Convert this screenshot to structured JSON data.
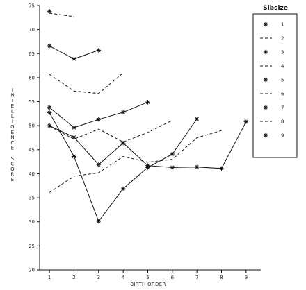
{
  "chart_data": {
    "type": "line",
    "title": "",
    "xlabel": "BIRTH ORDER",
    "ylabel": "INTELLIGENCE SCORE",
    "xlim": [
      0.6,
      9.6
    ],
    "ylim": [
      20,
      75
    ],
    "xticks": [
      1,
      2,
      3,
      4,
      5,
      6,
      7,
      8,
      9
    ],
    "yticks": [
      20,
      25,
      30,
      35,
      40,
      45,
      50,
      55,
      60,
      65,
      70,
      75
    ],
    "grid": false,
    "legend_title": "Sibsize",
    "legend_position": "top-right",
    "series": [
      {
        "name": "1",
        "style": "solid",
        "marker": "star",
        "x": [
          1
        ],
        "y": [
          73.8
        ]
      },
      {
        "name": "2",
        "style": "dashed",
        "marker": "none",
        "x": [
          1,
          2
        ],
        "y": [
          73.4,
          72.7
        ]
      },
      {
        "name": "3",
        "style": "solid",
        "marker": "star",
        "x": [
          1,
          2,
          3
        ],
        "y": [
          66.6,
          63.9,
          65.7
        ]
      },
      {
        "name": "4",
        "style": "dashed",
        "marker": "none",
        "x": [
          1,
          2,
          3,
          4
        ],
        "y": [
          60.7,
          57.2,
          56.7,
          61.0
        ]
      },
      {
        "name": "5",
        "style": "solid",
        "marker": "star",
        "x": [
          1,
          2,
          3,
          4,
          5
        ],
        "y": [
          53.8,
          49.6,
          51.3,
          52.8,
          54.9
        ]
      },
      {
        "name": "6",
        "style": "dashed",
        "marker": "none",
        "x": [
          1,
          2,
          3,
          4,
          5,
          6
        ],
        "y": [
          49.9,
          47.2,
          49.3,
          46.6,
          48.6,
          51.1
        ]
      },
      {
        "name": "7",
        "style": "solid",
        "marker": "star",
        "x": [
          1,
          2,
          3,
          4,
          5,
          6,
          7
        ],
        "y": [
          52.7,
          43.6,
          30.1,
          36.9,
          41.3,
          44.1,
          51.4
        ]
      },
      {
        "name": "8",
        "style": "dashed",
        "marker": "none",
        "x": [
          1,
          2,
          3,
          4,
          5,
          6,
          7,
          8
        ],
        "y": [
          36.1,
          39.5,
          40.2,
          43.6,
          42.4,
          43.0,
          47.5,
          49.0
        ]
      },
      {
        "name": "9",
        "style": "solid",
        "marker": "star",
        "x": [
          1,
          2,
          3,
          4,
          5,
          6,
          7,
          8,
          9
        ],
        "y": [
          50.0,
          47.6,
          41.9,
          46.4,
          41.7,
          41.3,
          41.4,
          41.1,
          50.8
        ]
      }
    ]
  }
}
